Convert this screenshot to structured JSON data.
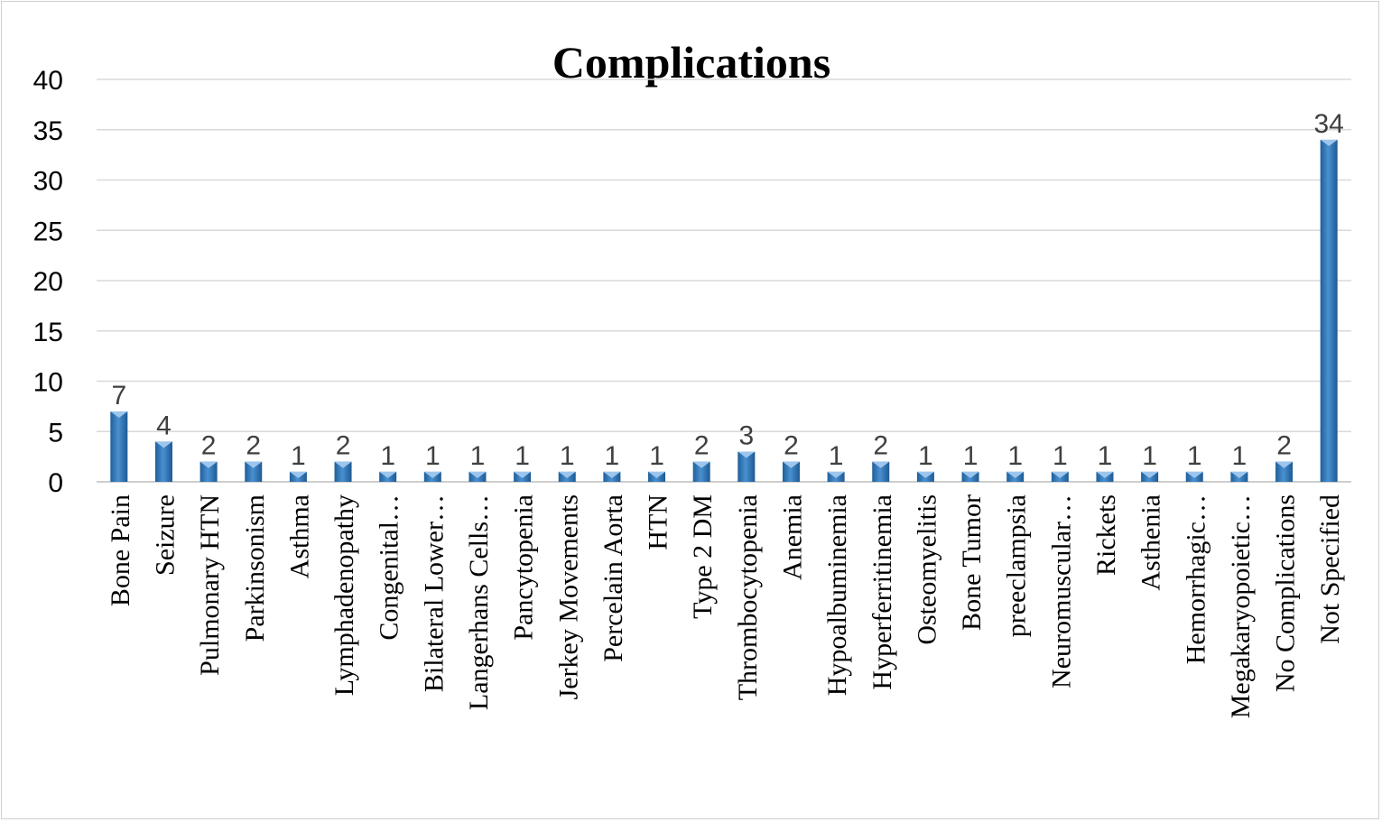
{
  "chart_data": {
    "type": "bar",
    "title": "Complications",
    "xlabel": "",
    "ylabel": "",
    "ylim": [
      0,
      40
    ],
    "yticks": [
      0,
      5,
      10,
      15,
      20,
      25,
      30,
      35,
      40
    ],
    "grid": true,
    "legend": "none",
    "bar_color": "#2e75b6",
    "categories": [
      "Bone Pain",
      "Seizure",
      "Pulmonary HTN",
      "Parkinsonism",
      "Asthma",
      "Lymphadenopathy",
      "Congenital…",
      "Bilateral Lower…",
      "Langerhans Cells…",
      "Pancytopenia",
      "Jerkey Movements",
      "Percelain Aorta",
      "HTN",
      "Type 2 DM",
      "Thrombocytopenia",
      "Anemia",
      "Hypoalbuminemia",
      "Hyperferritinemia",
      "Osteomyelitis",
      "Bone Tumor",
      "preeclampsia",
      "Neuromuscular…",
      "Rickets",
      "Asthenia",
      "Hemorrhagic…",
      "Megakaryopoietic…",
      "No Complications",
      "Not Specified"
    ],
    "values": [
      7,
      4,
      2,
      2,
      1,
      2,
      1,
      1,
      1,
      1,
      1,
      1,
      1,
      2,
      3,
      2,
      1,
      2,
      1,
      1,
      1,
      1,
      1,
      1,
      1,
      1,
      2,
      34
    ]
  }
}
